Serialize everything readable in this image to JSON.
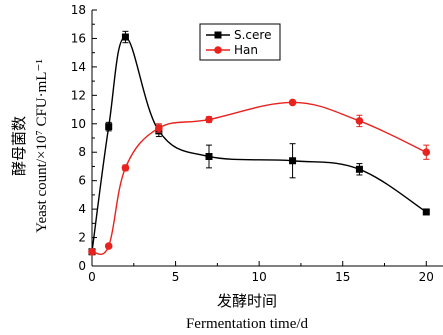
{
  "chart_data": {
    "type": "line",
    "xlabel_cn": "发酵时间",
    "xlabel_en": "Fermentation time/d",
    "ylabel_cn": "酵母菌数",
    "ylabel_en": "Yeast count/×10⁷ CFU·mL⁻¹",
    "xlim": [
      0,
      21
    ],
    "ylim": [
      0,
      18
    ],
    "xticks": [
      0,
      5,
      10,
      15,
      20
    ],
    "yticks": [
      0,
      2,
      4,
      6,
      8,
      10,
      12,
      14,
      16,
      18
    ],
    "legend_position": "top-center",
    "series": [
      {
        "name": "S.cere",
        "color": "#000000",
        "marker": "square",
        "x": [
          0,
          1,
          2,
          4,
          7,
          12,
          16,
          20
        ],
        "y": [
          1.0,
          9.8,
          16.1,
          9.5,
          7.7,
          7.4,
          6.8,
          3.8
        ],
        "err": [
          0.1,
          0.3,
          0.4,
          0.4,
          0.8,
          1.2,
          0.4,
          0.1
        ]
      },
      {
        "name": "Han",
        "color": "#e8231f",
        "marker": "circle",
        "x": [
          0,
          1,
          2,
          4,
          7,
          12,
          16,
          20
        ],
        "y": [
          1.0,
          1.4,
          6.9,
          9.7,
          10.3,
          11.5,
          10.2,
          8.0
        ],
        "err": [
          0.1,
          0.1,
          0.2,
          0.3,
          0.2,
          0.1,
          0.4,
          0.5
        ]
      }
    ]
  }
}
